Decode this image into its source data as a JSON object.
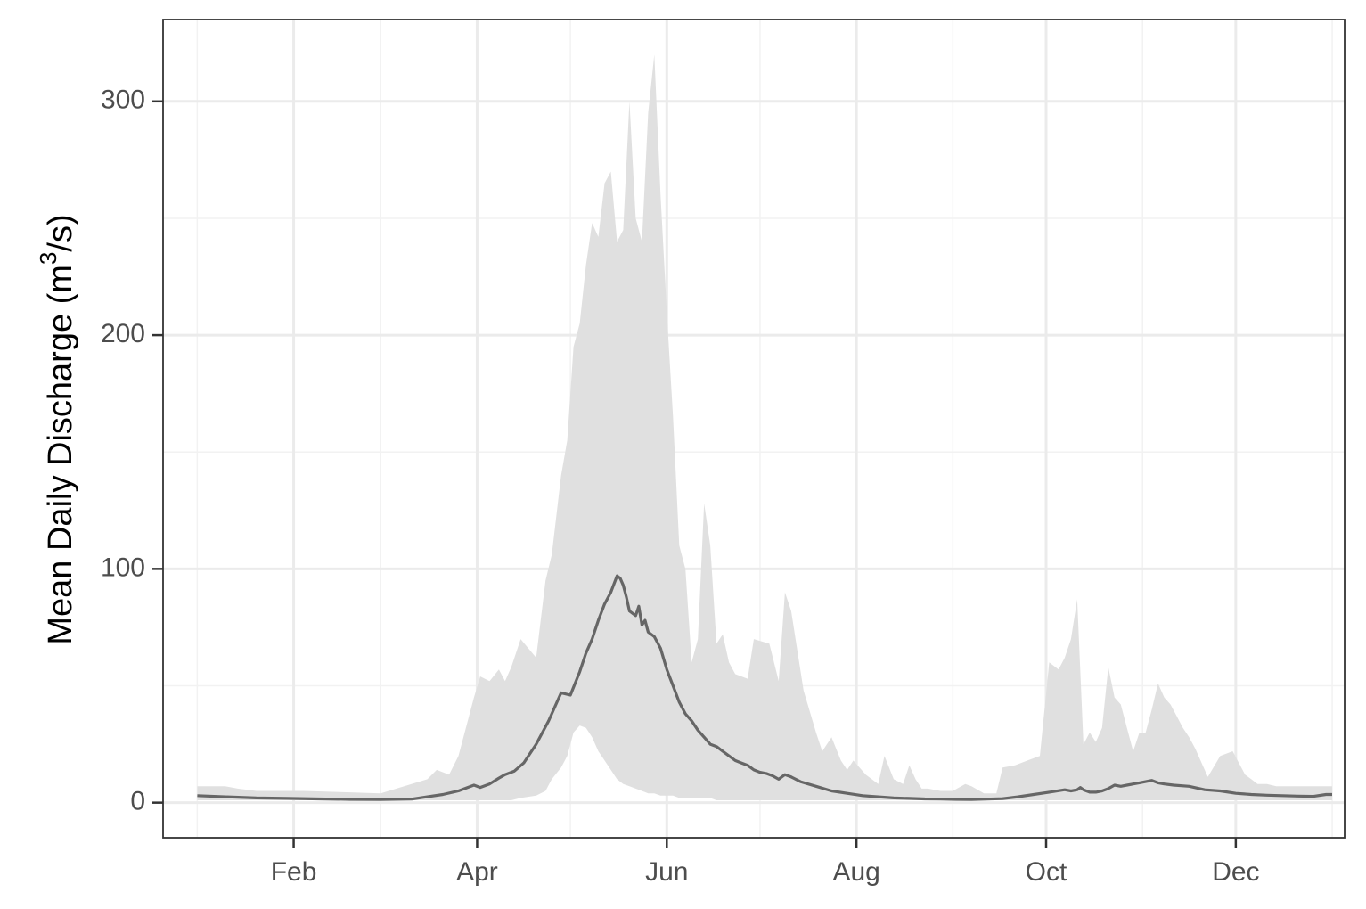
{
  "chart_data": {
    "type": "area",
    "title": "",
    "xlabel": "",
    "ylabel": {
      "main": "Mean Daily Discharge (m",
      "superscript": "3",
      "suffix": "/s)"
    },
    "x_unit": "day of year",
    "xlim_doy": [
      -10,
      370
    ],
    "ylim": [
      -15,
      335
    ],
    "y_major_ticks": [
      0,
      100,
      200,
      300
    ],
    "y_minor_ticks": [
      50,
      150,
      250
    ],
    "x_major_ticks": [
      {
        "doy": 32,
        "label": "Feb"
      },
      {
        "doy": 91,
        "label": "Apr"
      },
      {
        "doy": 152,
        "label": "Jun"
      },
      {
        "doy": 213,
        "label": "Aug"
      },
      {
        "doy": 274,
        "label": "Oct"
      },
      {
        "doy": 335,
        "label": "Dec"
      }
    ],
    "x_minor_ticks": [
      1,
      60,
      121,
      182,
      244,
      305,
      366
    ],
    "grid": true,
    "legend": "none",
    "colors": {
      "ribbon": "#e0e0e0",
      "line": "#666666",
      "grid": "#ebebeb",
      "border": "#333333",
      "tick_text": "#4d4d4d"
    },
    "series": [
      {
        "name": "",
        "role": "range ribbon (min-max)",
        "x": [
          1,
          10,
          14,
          20,
          35,
          60,
          75,
          78,
          82,
          85,
          90,
          92,
          95,
          98,
          100,
          102,
          105,
          110,
          113,
          115,
          118,
          120,
          122,
          124,
          126,
          128,
          130,
          132,
          134,
          136,
          138,
          140,
          142,
          144,
          146,
          148,
          150,
          152,
          154,
          156,
          158,
          160,
          162,
          164,
          166,
          168,
          170,
          172,
          174,
          178,
          180,
          185,
          188,
          190,
          192,
          196,
          200,
          202,
          205,
          208,
          210,
          212,
          216,
          220,
          222,
          225,
          228,
          230,
          232,
          234,
          236,
          240,
          244,
          248,
          250,
          254,
          258,
          260,
          264,
          268,
          272,
          275,
          278,
          280,
          282,
          284,
          286,
          288,
          290,
          292,
          294,
          296,
          298,
          300,
          302,
          304,
          306,
          308,
          310,
          312,
          314,
          316,
          318,
          320,
          322,
          324,
          326,
          330,
          334,
          338,
          340,
          342,
          345,
          348,
          350,
          360,
          366
        ],
        "upper": [
          7,
          7,
          6,
          5,
          5,
          4,
          10,
          14,
          12,
          20,
          45,
          54,
          52,
          57,
          52,
          58,
          70,
          62,
          95,
          106,
          140,
          155,
          195,
          205,
          230,
          248,
          242,
          265,
          270,
          240,
          245,
          300,
          250,
          240,
          295,
          320,
          260,
          210,
          165,
          110,
          100,
          60,
          70,
          128,
          110,
          68,
          72,
          60,
          55,
          53,
          70,
          68,
          52,
          90,
          82,
          48,
          30,
          22,
          28,
          18,
          14,
          18,
          12,
          8,
          20,
          10,
          8,
          16,
          10,
          6,
          6,
          5,
          5,
          8,
          7,
          4,
          4,
          15,
          16,
          18,
          20,
          60,
          57,
          62,
          70,
          87,
          25,
          30,
          26,
          32,
          58,
          45,
          42,
          32,
          22,
          30,
          30,
          40,
          51,
          45,
          42,
          37,
          32,
          28,
          23,
          17,
          11,
          20,
          22,
          12,
          10,
          8,
          8,
          7,
          7,
          7,
          7
        ],
        "lower": [
          1,
          1,
          1,
          1,
          1,
          1,
          1,
          1,
          1,
          1,
          1,
          1,
          1,
          1,
          1,
          1,
          2,
          3,
          5,
          10,
          15,
          20,
          30,
          33,
          32,
          28,
          22,
          18,
          14,
          10,
          8,
          7,
          6,
          5,
          4,
          4,
          3,
          3,
          3,
          2,
          2,
          2,
          2,
          2,
          2,
          1,
          1,
          1,
          1,
          1,
          1,
          1,
          1,
          1,
          1,
          1,
          1,
          1,
          1,
          1,
          1,
          1,
          1,
          1,
          1,
          1,
          1,
          1,
          1,
          1,
          1,
          1,
          1,
          1,
          1,
          1,
          1,
          1,
          1,
          1,
          1,
          1,
          1,
          1,
          1,
          1,
          1,
          1,
          1,
          1,
          1,
          1,
          1,
          1,
          1,
          1,
          1,
          1,
          1,
          1,
          1,
          1,
          1,
          1,
          1,
          1,
          1,
          1,
          1,
          1,
          1,
          1,
          1,
          1,
          1,
          1,
          1
        ]
      },
      {
        "name": "",
        "role": "mean line",
        "x": [
          1,
          10,
          20,
          30,
          40,
          50,
          60,
          70,
          75,
          80,
          85,
          90,
          92,
          95,
          98,
          100,
          103,
          106,
          110,
          114,
          118,
          121,
          124,
          125,
          126,
          127,
          128,
          130,
          132,
          134,
          136,
          137,
          138,
          139,
          140,
          142,
          143,
          144,
          145,
          146,
          148,
          150,
          152,
          154,
          156,
          158,
          160,
          162,
          164,
          166,
          168,
          170,
          172,
          174,
          176,
          178,
          180,
          182,
          184,
          186,
          188,
          190,
          192,
          195,
          200,
          205,
          210,
          215,
          220,
          225,
          230,
          235,
          240,
          245,
          250,
          255,
          260,
          265,
          270,
          275,
          280,
          282,
          284,
          285,
          286,
          288,
          290,
          292,
          294,
          296,
          298,
          300,
          302,
          304,
          306,
          308,
          310,
          312,
          315,
          320,
          325,
          330,
          335,
          340,
          345,
          350,
          355,
          360,
          364,
          366
        ],
        "y": [
          3,
          2.5,
          2,
          1.8,
          1.6,
          1.4,
          1.3,
          1.5,
          2.5,
          3.5,
          5,
          7.5,
          6.5,
          8,
          10.5,
          12,
          13.5,
          17,
          25,
          35,
          47,
          46,
          56,
          60,
          64,
          67,
          70,
          78,
          85,
          90,
          97,
          96,
          93,
          88,
          82,
          80,
          84,
          76,
          78,
          73,
          71,
          66,
          57,
          50,
          43,
          38,
          35,
          31,
          28,
          25,
          24,
          22,
          20,
          18,
          17,
          16,
          14,
          13,
          12.5,
          11.5,
          10,
          12,
          11,
          9,
          7,
          5,
          4,
          3,
          2.5,
          2,
          1.8,
          1.6,
          1.5,
          1.4,
          1.3,
          1.5,
          1.7,
          2.5,
          3.5,
          4.5,
          5.5,
          5,
          5.5,
          6.5,
          5.5,
          4.5,
          4.5,
          5,
          6,
          7.5,
          7,
          7.5,
          8,
          8.5,
          9,
          9.5,
          8.5,
          8,
          7.5,
          7,
          5.5,
          5,
          4,
          3.5,
          3.2,
          3,
          2.8,
          2.7,
          3.5,
          3.5
        ]
      }
    ]
  }
}
